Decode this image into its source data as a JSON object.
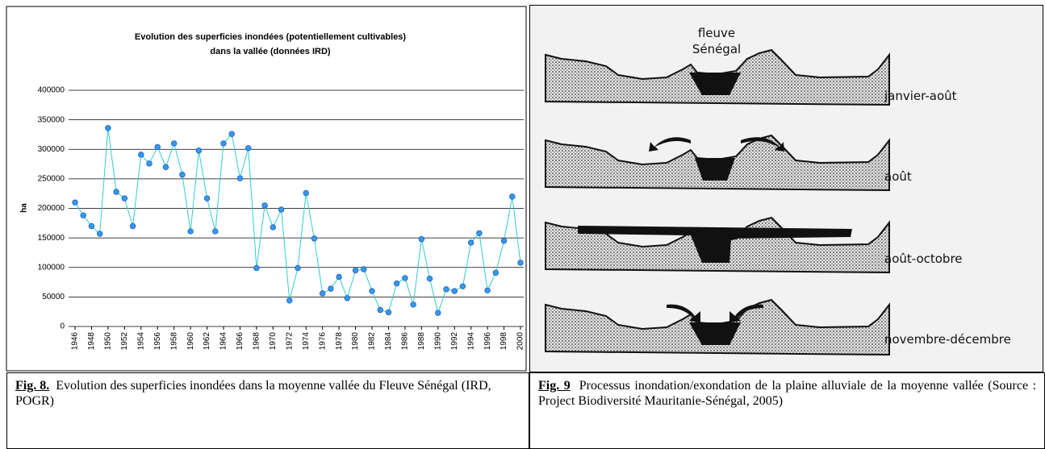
{
  "chart_data": {
    "type": "line",
    "title": [
      "Evolution des superficies inondées (potentiellement cultivables)",
      "dans la vallée (données IRD)"
    ],
    "ylabel": "ha",
    "x": [
      1946,
      1947,
      1948,
      1949,
      1950,
      1951,
      1952,
      1953,
      1954,
      1955,
      1956,
      1957,
      1958,
      1959,
      1960,
      1961,
      1962,
      1963,
      1964,
      1965,
      1966,
      1967,
      1968,
      1969,
      1970,
      1971,
      1972,
      1973,
      1974,
      1975,
      1976,
      1977,
      1978,
      1979,
      1980,
      1981,
      1982,
      1983,
      1984,
      1985,
      1986,
      1987,
      1988,
      1989,
      1990,
      1991,
      1992,
      1993,
      1994,
      1995,
      1996,
      1997,
      1998,
      1999,
      2000
    ],
    "series": [
      {
        "color": "#33cccc",
        "values": [
          210000,
          188000,
          170000,
          157000,
          336000,
          228000,
          217000,
          170000,
          291000,
          276000,
          304000,
          270000,
          310000,
          257000,
          161000,
          298000,
          217000,
          161000,
          310000,
          326000,
          251000,
          302000,
          99000,
          205000,
          168000,
          198000,
          44000,
          99000,
          226000,
          149000,
          56000,
          64000,
          84000,
          48000,
          95000,
          97000,
          60000,
          28000,
          24000,
          73000,
          82000,
          37000,
          148000,
          81000,
          23000,
          63000,
          60000,
          68000,
          142000,
          158000,
          61000,
          91000,
          145000,
          220000,
          108000
        ]
      }
    ],
    "marker_color": "#3399ff",
    "xlim": [
      1946,
      2000
    ],
    "xticks": [
      1946,
      1948,
      1950,
      1952,
      1954,
      1956,
      1958,
      1960,
      1962,
      1964,
      1966,
      1968,
      1970,
      1972,
      1974,
      1976,
      1978,
      1980,
      1982,
      1984,
      1986,
      1988,
      1990,
      1992,
      1994,
      1996,
      1998,
      2000
    ],
    "ylim": [
      0,
      400000
    ],
    "yticks": [
      0,
      50000,
      100000,
      150000,
      200000,
      250000,
      300000,
      350000,
      400000
    ],
    "grid": true
  },
  "fig8_caption": {
    "label": "Fig. 8.",
    "text": "Evolution des superficies inondées dans la moyenne vallée du Fleuve Sénégal (IRD, POGR)"
  },
  "fig9": {
    "river": [
      "fleuve",
      "Sénégal"
    ],
    "stages": [
      "janvier-août",
      "août",
      "août-octobre",
      "novembre-décembre"
    ],
    "caption": {
      "label": "Fig. 9",
      "text": "Processus inondation/exondation de la plaine alluviale de la moyenne vallée (Source : Project Biodiversité Mauritanie-Sénégal, 2005)"
    }
  }
}
